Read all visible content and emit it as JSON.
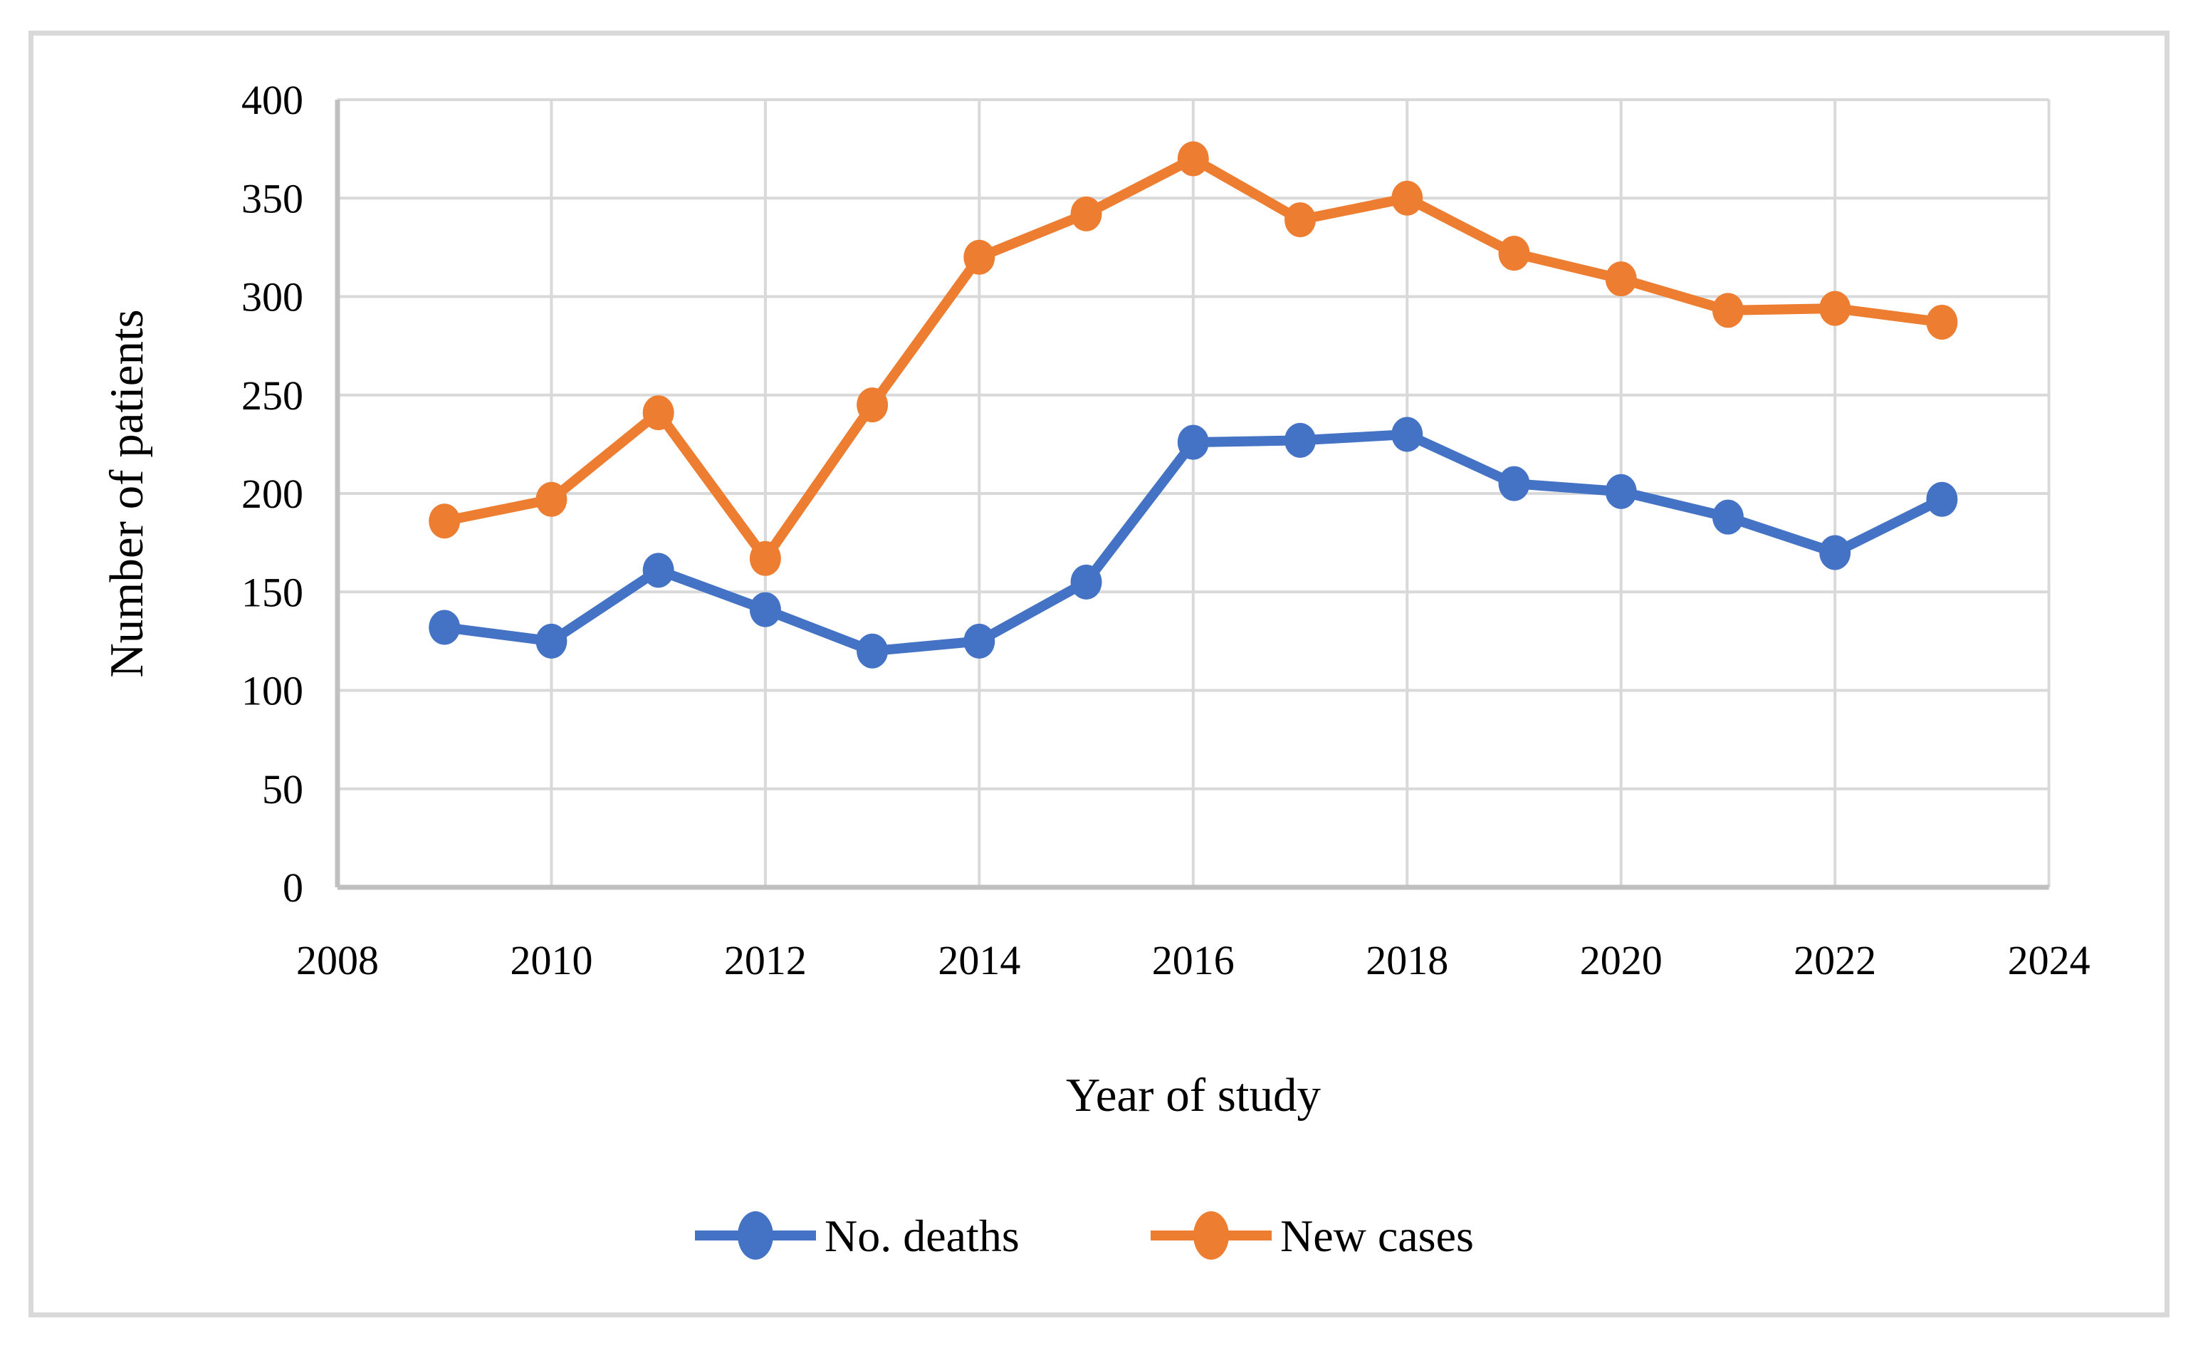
{
  "figure": {
    "background_color": "#FFFFFF",
    "border_color": "#D9D9D9",
    "gridline_color": "#D9D9D9",
    "axis_line_color": "#C0C0C0",
    "text_color": "#000000"
  },
  "chart_data": {
    "type": "line",
    "title": "",
    "xlabel": "Year of study",
    "ylabel": "Number of patients",
    "x": [
      2009,
      2010,
      2011,
      2012,
      2013,
      2014,
      2015,
      2016,
      2017,
      2018,
      2019,
      2020,
      2021,
      2022,
      2023
    ],
    "series": [
      {
        "name": "No. deaths",
        "color": "#4472C4",
        "marker": "circle",
        "values": [
          132,
          125,
          161,
          141,
          120,
          125,
          155,
          226,
          227,
          230,
          205,
          201,
          188,
          170,
          197
        ]
      },
      {
        "name": "New cases",
        "color": "#ED7D31",
        "marker": "circle",
        "values": [
          186,
          197,
          241,
          167,
          245,
          320,
          342,
          370,
          339,
          350,
          322,
          309,
          293,
          294,
          287
        ]
      }
    ],
    "xlim": [
      2008,
      2024
    ],
    "ylim": [
      0,
      400
    ],
    "x_ticks": [
      "2008",
      "2010",
      "2012",
      "2014",
      "2016",
      "2018",
      "2020",
      "2022",
      "2024"
    ],
    "y_ticks": [
      "0",
      "50",
      "100",
      "150",
      "200",
      "250",
      "300",
      "350",
      "400"
    ],
    "grid": "on",
    "legend_position": "bottom-center"
  }
}
